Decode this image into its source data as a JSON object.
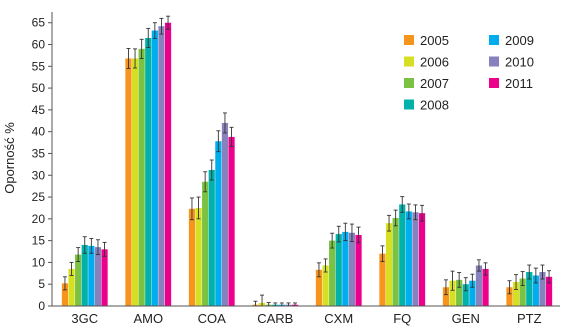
{
  "chart_data": {
    "type": "bar",
    "title": "",
    "xlabel": "",
    "ylabel": "Oporność %",
    "ylim": [
      0,
      67
    ],
    "yticks": [
      0,
      5,
      10,
      15,
      20,
      25,
      30,
      35,
      40,
      45,
      50,
      55,
      60,
      65
    ],
    "grid": false,
    "legend_position": "top-right",
    "categories": [
      "3GC",
      "AMO",
      "COA",
      "CARB",
      "CXM",
      "FQ",
      "GEN",
      "PTZ"
    ],
    "series": [
      {
        "name": "2005",
        "color": "#f7941d",
        "values": [
          5.2,
          56.8,
          22.3,
          0.3,
          8.3,
          12.0,
          4.3,
          4.3
        ],
        "error": [
          1.5,
          2.3,
          2.5,
          0.8,
          1.6,
          1.8,
          1.7,
          1.5
        ]
      },
      {
        "name": "2006",
        "color": "#d7df23",
        "values": [
          8.5,
          56.8,
          22.5,
          0.7,
          9.3,
          19.0,
          5.8,
          5.5
        ],
        "error": [
          1.5,
          2.2,
          2.5,
          1.8,
          1.5,
          1.8,
          2.2,
          1.7
        ]
      },
      {
        "name": "2007",
        "color": "#7cc242",
        "values": [
          11.8,
          59.0,
          28.5,
          0.3,
          15.0,
          20.2,
          6.0,
          6.3
        ],
        "error": [
          1.6,
          2.2,
          2.3,
          0.5,
          1.7,
          1.8,
          1.7,
          1.6
        ]
      },
      {
        "name": "2008",
        "color": "#00b2a9",
        "values": [
          14.0,
          61.5,
          31.2,
          0.3,
          16.5,
          23.3,
          5.0,
          7.8
        ],
        "error": [
          1.9,
          2.2,
          2.3,
          0.4,
          1.8,
          1.8,
          1.5,
          1.6
        ]
      },
      {
        "name": "2009",
        "color": "#00aeef",
        "values": [
          13.8,
          63.2,
          37.8,
          0.3,
          17.0,
          21.7,
          5.8,
          7.0
        ],
        "error": [
          1.7,
          1.8,
          2.4,
          0.4,
          2.0,
          1.7,
          1.5,
          1.7
        ]
      },
      {
        "name": "2010",
        "color": "#8781bd",
        "values": [
          13.5,
          64.2,
          42.0,
          0.3,
          16.8,
          21.5,
          9.3,
          7.8
        ],
        "error": [
          1.7,
          1.8,
          2.3,
          0.4,
          2.0,
          1.7,
          1.3,
          1.6
        ]
      },
      {
        "name": "2011",
        "color": "#ec008c",
        "values": [
          13.0,
          65.0,
          38.8,
          0.3,
          16.3,
          21.3,
          8.5,
          6.7
        ],
        "error": [
          1.6,
          1.5,
          2.2,
          0.4,
          1.8,
          1.8,
          1.4,
          1.4
        ]
      }
    ],
    "legend_columns": [
      [
        "2005",
        "2006",
        "2007",
        "2008"
      ],
      [
        "2009",
        "2010",
        "2011"
      ]
    ]
  }
}
